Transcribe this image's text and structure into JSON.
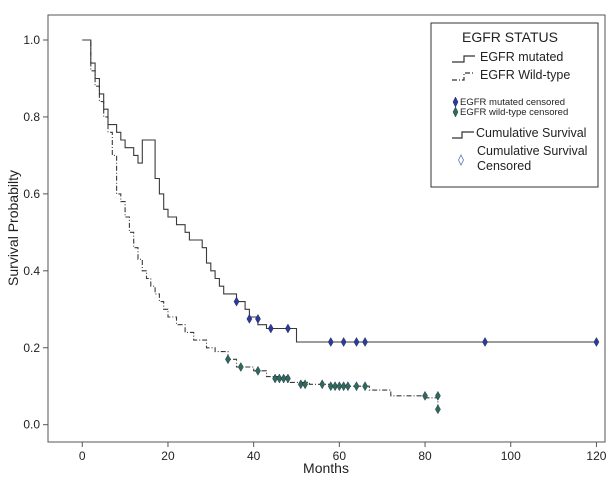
{
  "chart_data": {
    "type": "line",
    "xlabel": "Months",
    "ylabel": "Survival Probabilty",
    "xlim": [
      -8,
      122
    ],
    "ylim": [
      -0.045,
      1.065
    ],
    "xticks": [
      0,
      20,
      40,
      60,
      80,
      100,
      120
    ],
    "yticks": [
      0.0,
      0.2,
      0.4,
      0.6,
      0.8,
      1.0
    ],
    "xtick_labels": [
      "0",
      "20",
      "40",
      "60",
      "80",
      "100",
      "120"
    ],
    "ytick_labels": [
      "0.0",
      "0.2",
      "0.4",
      "0.6",
      "0.8",
      "1.0"
    ],
    "grid": false,
    "legend_position": "top-right",
    "legend": {
      "title": "EGFR STATUS",
      "items": {
        "mutated_line": "EGFR mutated",
        "wild_line": "EGFR Wild-type",
        "mutated_censored": "EGFR mutated censored",
        "wild_censored": "EGFR wild-type censored",
        "cum_survival": "Cumulative Survival",
        "cum_censored_1": "Cumulative Survival",
        "cum_censored_2": "Censored"
      }
    },
    "series": [
      {
        "name": "EGFR mutated",
        "style": "solid",
        "color": "#3a3a3a",
        "censor_color": "#2b3a9c",
        "steps": [
          [
            0,
            1.0
          ],
          [
            2,
            1.0
          ],
          [
            2,
            0.94
          ],
          [
            3,
            0.94
          ],
          [
            3,
            0.9
          ],
          [
            4,
            0.9
          ],
          [
            4,
            0.86
          ],
          [
            5,
            0.86
          ],
          [
            5,
            0.82
          ],
          [
            6,
            0.82
          ],
          [
            6,
            0.78
          ],
          [
            8,
            0.78
          ],
          [
            8,
            0.76
          ],
          [
            9,
            0.76
          ],
          [
            9,
            0.74
          ],
          [
            10,
            0.74
          ],
          [
            10,
            0.72
          ],
          [
            12,
            0.72
          ],
          [
            12,
            0.7
          ],
          [
            13,
            0.7
          ],
          [
            13,
            0.68
          ],
          [
            14,
            0.68
          ],
          [
            14,
            0.74
          ],
          [
            17,
            0.74
          ],
          [
            17,
            0.64
          ],
          [
            18,
            0.64
          ],
          [
            18,
            0.6
          ],
          [
            19,
            0.6
          ],
          [
            19,
            0.56
          ],
          [
            20,
            0.56
          ],
          [
            20,
            0.54
          ],
          [
            22,
            0.54
          ],
          [
            22,
            0.52
          ],
          [
            24,
            0.52
          ],
          [
            24,
            0.5
          ],
          [
            25,
            0.5
          ],
          [
            25,
            0.48
          ],
          [
            28,
            0.48
          ],
          [
            28,
            0.46
          ],
          [
            29,
            0.46
          ],
          [
            29,
            0.42
          ],
          [
            30,
            0.42
          ],
          [
            30,
            0.4
          ],
          [
            31,
            0.4
          ],
          [
            31,
            0.38
          ],
          [
            32,
            0.38
          ],
          [
            32,
            0.36
          ],
          [
            33,
            0.36
          ],
          [
            33,
            0.34
          ],
          [
            36,
            0.34
          ],
          [
            36,
            0.32
          ],
          [
            38,
            0.32
          ],
          [
            38,
            0.3
          ],
          [
            39,
            0.3
          ],
          [
            39,
            0.28
          ],
          [
            41,
            0.28
          ],
          [
            41,
            0.26
          ],
          [
            43,
            0.26
          ],
          [
            43,
            0.25
          ],
          [
            50,
            0.25
          ],
          [
            50,
            0.215
          ],
          [
            120,
            0.215
          ]
        ],
        "censored": [
          [
            36,
            0.32
          ],
          [
            39,
            0.275
          ],
          [
            41,
            0.275
          ],
          [
            44,
            0.25
          ],
          [
            48,
            0.25
          ],
          [
            58,
            0.215
          ],
          [
            61,
            0.215
          ],
          [
            64,
            0.215
          ],
          [
            66,
            0.215
          ],
          [
            94,
            0.215
          ],
          [
            120,
            0.215
          ]
        ]
      },
      {
        "name": "EGFR Wild-type",
        "style": "dashdot",
        "color": "#3a3a3a",
        "censor_color": "#2f6b5a",
        "steps": [
          [
            0,
            1.0
          ],
          [
            2,
            1.0
          ],
          [
            2,
            0.92
          ],
          [
            3,
            0.92
          ],
          [
            3,
            0.88
          ],
          [
            4,
            0.88
          ],
          [
            4,
            0.84
          ],
          [
            5,
            0.84
          ],
          [
            5,
            0.8
          ],
          [
            6,
            0.8
          ],
          [
            6,
            0.76
          ],
          [
            7,
            0.76
          ],
          [
            7,
            0.7
          ],
          [
            8,
            0.7
          ],
          [
            8,
            0.6
          ],
          [
            9,
            0.6
          ],
          [
            9,
            0.58
          ],
          [
            10,
            0.58
          ],
          [
            10,
            0.54
          ],
          [
            11,
            0.54
          ],
          [
            11,
            0.5
          ],
          [
            12,
            0.5
          ],
          [
            12,
            0.46
          ],
          [
            13,
            0.46
          ],
          [
            13,
            0.43
          ],
          [
            14,
            0.43
          ],
          [
            14,
            0.4
          ],
          [
            15,
            0.4
          ],
          [
            15,
            0.38
          ],
          [
            16,
            0.38
          ],
          [
            16,
            0.36
          ],
          [
            17,
            0.36
          ],
          [
            17,
            0.34
          ],
          [
            18,
            0.34
          ],
          [
            18,
            0.32
          ],
          [
            19,
            0.32
          ],
          [
            19,
            0.3
          ],
          [
            20,
            0.3
          ],
          [
            20,
            0.28
          ],
          [
            22,
            0.28
          ],
          [
            22,
            0.26
          ],
          [
            24,
            0.26
          ],
          [
            24,
            0.24
          ],
          [
            26,
            0.24
          ],
          [
            26,
            0.22
          ],
          [
            29,
            0.22
          ],
          [
            29,
            0.2
          ],
          [
            31,
            0.2
          ],
          [
            31,
            0.19
          ],
          [
            34,
            0.19
          ],
          [
            34,
            0.17
          ],
          [
            36,
            0.17
          ],
          [
            36,
            0.15
          ],
          [
            40,
            0.15
          ],
          [
            40,
            0.14
          ],
          [
            43,
            0.14
          ],
          [
            43,
            0.125
          ],
          [
            48,
            0.125
          ],
          [
            48,
            0.11
          ],
          [
            53,
            0.11
          ],
          [
            53,
            0.105
          ],
          [
            58,
            0.105
          ],
          [
            58,
            0.1
          ],
          [
            67,
            0.1
          ],
          [
            67,
            0.09
          ],
          [
            72,
            0.09
          ],
          [
            72,
            0.075
          ],
          [
            80,
            0.075
          ],
          [
            80,
            0.07
          ],
          [
            83,
            0.07
          ],
          [
            83,
            0.04
          ]
        ],
        "censored": [
          [
            34,
            0.17
          ],
          [
            37,
            0.15
          ],
          [
            41,
            0.14
          ],
          [
            45,
            0.12
          ],
          [
            46,
            0.12
          ],
          [
            47,
            0.12
          ],
          [
            48,
            0.12
          ],
          [
            51,
            0.105
          ],
          [
            52,
            0.105
          ],
          [
            56,
            0.105
          ],
          [
            58,
            0.1
          ],
          [
            59,
            0.1
          ],
          [
            60,
            0.1
          ],
          [
            61,
            0.1
          ],
          [
            62,
            0.1
          ],
          [
            64,
            0.1
          ],
          [
            66,
            0.1
          ],
          [
            80,
            0.075
          ],
          [
            83,
            0.075
          ],
          [
            83,
            0.04
          ]
        ]
      }
    ]
  }
}
